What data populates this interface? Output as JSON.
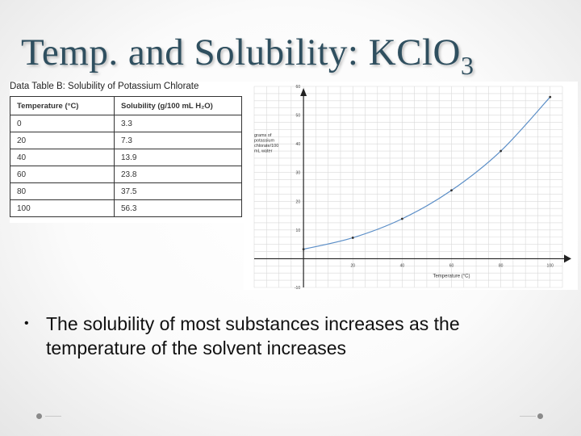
{
  "slide": {
    "title_main": "Temp. and Solubility: KClO",
    "title_sub": "3",
    "bullet": "The solubility of most substances increases as the temperature of the solvent increases"
  },
  "table": {
    "caption": "Data Table B: Solubility of Potassium Chlorate",
    "headers": [
      "Temperature (°C)",
      "Solubility (g/100 mL H₂O)"
    ],
    "rows": [
      [
        "0",
        "3.3"
      ],
      [
        "20",
        "7.3"
      ],
      [
        "40",
        "13.9"
      ],
      [
        "60",
        "23.8"
      ],
      [
        "80",
        "37.5"
      ],
      [
        "100",
        "56.3"
      ]
    ]
  },
  "chart_data": {
    "type": "line",
    "x": [
      0,
      20,
      40,
      60,
      80,
      100
    ],
    "values": [
      3.3,
      7.3,
      13.9,
      23.8,
      37.5,
      56.3
    ],
    "xlabel": "Temperature (°C)",
    "ylabel": [
      "grams of",
      "potassium",
      "chlorate/100",
      "mL water"
    ],
    "xlim": [
      -20,
      105
    ],
    "ylim": [
      -10,
      60
    ],
    "x_ticks": [
      20,
      40,
      60,
      80,
      100
    ],
    "y_ticks": [
      -10,
      10,
      20,
      30,
      40,
      50,
      60
    ],
    "grid": true,
    "line_color": "#5b8ec7"
  }
}
